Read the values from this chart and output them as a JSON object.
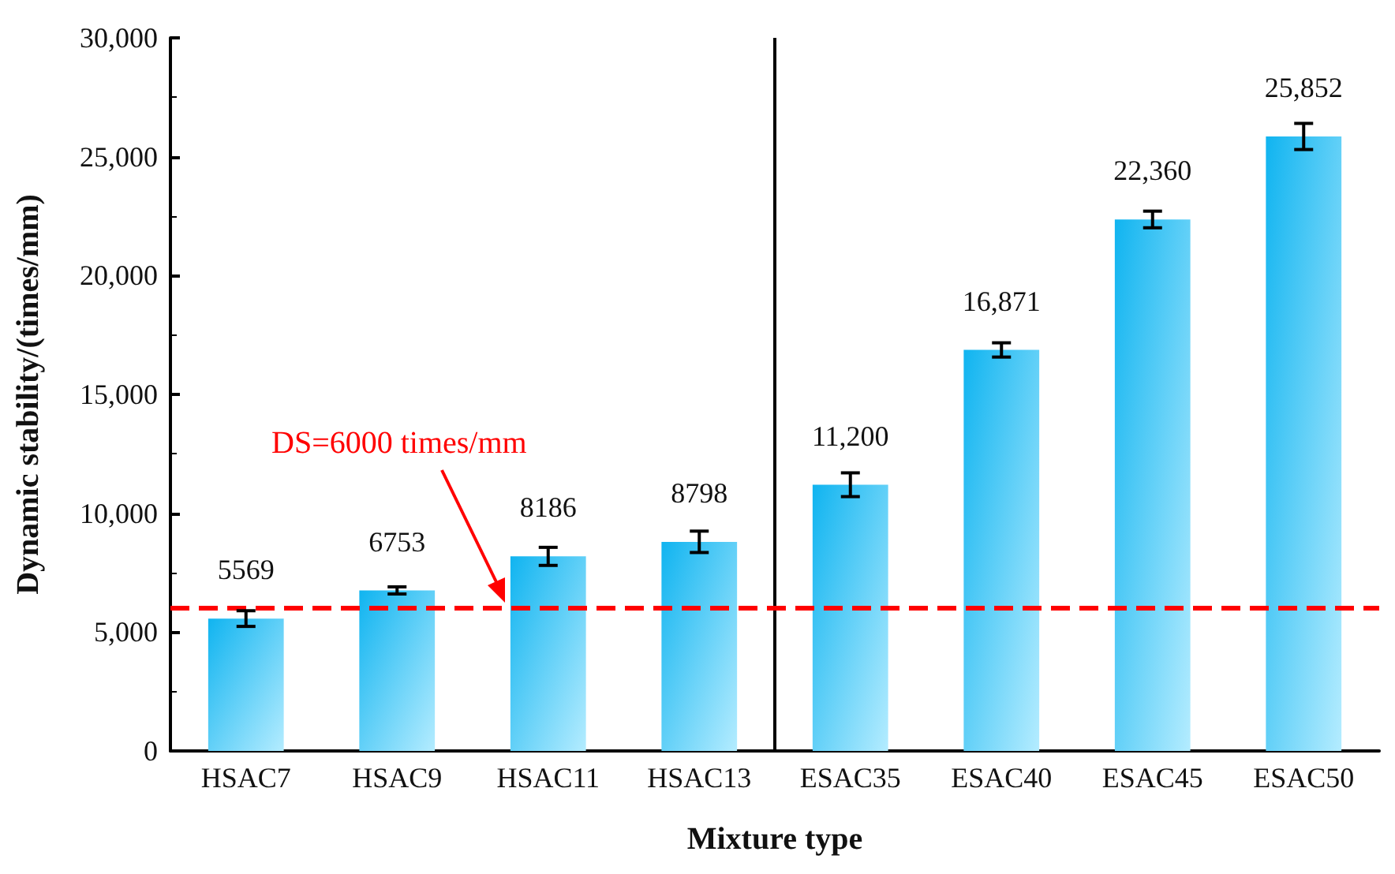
{
  "chart_data": {
    "type": "bar",
    "xlabel": "Mixture type",
    "ylabel": "Dynamic stability/(times/mm)",
    "categories": [
      "HSAC7",
      "HSAC9",
      "HSAC11",
      "HSAC13",
      "ESAC35",
      "ESAC40",
      "ESAC45",
      "ESAC50"
    ],
    "values": [
      5569,
      6753,
      8186,
      8798,
      11200,
      16871,
      22360,
      25852
    ],
    "value_labels": [
      "5569",
      "6753",
      "8186",
      "8798",
      "11,200",
      "16,871",
      "22,360",
      "25,852"
    ],
    "errors": [
      330,
      150,
      380,
      450,
      500,
      300,
      350,
      550
    ],
    "color": "#10b4f0",
    "ylim": [
      0,
      30000
    ],
    "yticks": [
      {
        "value": 0,
        "label": "0"
      },
      {
        "value": 5000,
        "label": "5,000"
      },
      {
        "value": 10000,
        "label": "10,000"
      },
      {
        "value": 15000,
        "label": "15,000"
      },
      {
        "value": 20000,
        "label": "20,000"
      },
      {
        "value": 25000,
        "label": "25,000"
      },
      {
        "value": 30000,
        "label": "30,000"
      }
    ],
    "ref_lines": [
      {
        "axis": "y",
        "value": 6000,
        "label": "DS=6000 times/mm",
        "color": "#ff0000",
        "line_style": "dashed"
      }
    ],
    "grid": false
  }
}
